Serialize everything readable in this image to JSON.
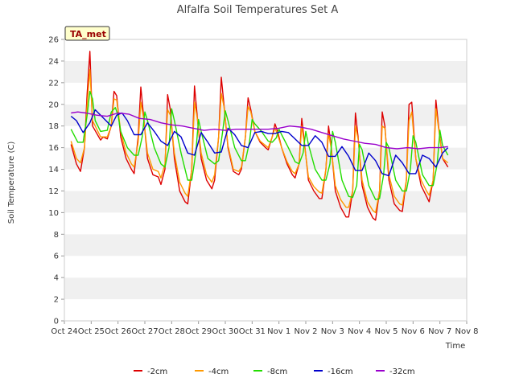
{
  "chart_data": {
    "type": "line",
    "title": "Alfalfa Soil Temperatures Set A",
    "xlabel": "Time",
    "ylabel": "Soil Temperature (C)",
    "badge": "TA_met",
    "ylim": [
      0,
      26
    ],
    "yticks": [
      0,
      2,
      4,
      6,
      8,
      10,
      12,
      14,
      16,
      18,
      20,
      22,
      24,
      26
    ],
    "xlim": [
      0,
      15
    ],
    "xticks": [
      {
        "pos": 0,
        "label": "Oct 24"
      },
      {
        "pos": 1,
        "label": "Oct 25"
      },
      {
        "pos": 2,
        "label": "Oct 26"
      },
      {
        "pos": 3,
        "label": "Oct 27"
      },
      {
        "pos": 4,
        "label": "Oct 28"
      },
      {
        "pos": 5,
        "label": "Oct 29"
      },
      {
        "pos": 6,
        "label": "Oct 30"
      },
      {
        "pos": 7,
        "label": "Oct 31"
      },
      {
        "pos": 8,
        "label": "Nov 1"
      },
      {
        "pos": 9,
        "label": "Nov 2"
      },
      {
        "pos": 10,
        "label": "Nov 3"
      },
      {
        "pos": 11,
        "label": "Nov 4"
      },
      {
        "pos": 12,
        "label": "Nov 5"
      },
      {
        "pos": 13,
        "label": "Nov 6"
      },
      {
        "pos": 14,
        "label": "Nov 7"
      },
      {
        "pos": 15,
        "label": "Nov 8"
      }
    ],
    "grid": "horizontal alternating bands",
    "legend_position": "bottom",
    "series": [
      {
        "name": "-2cm",
        "color": "#dd0000",
        "x": [
          0.25,
          0.45,
          0.6,
          0.75,
          0.85,
          0.95,
          1.05,
          1.35,
          1.45,
          1.6,
          1.75,
          1.85,
          1.95,
          2.1,
          2.3,
          2.5,
          2.6,
          2.75,
          2.85,
          2.95,
          3.1,
          3.3,
          3.5,
          3.6,
          3.75,
          3.85,
          3.95,
          4.1,
          4.3,
          4.5,
          4.6,
          4.75,
          4.85,
          4.95,
          5.1,
          5.3,
          5.5,
          5.6,
          5.75,
          5.85,
          5.95,
          6.1,
          6.3,
          6.5,
          6.6,
          6.75,
          6.85,
          6.95,
          7.1,
          7.3,
          7.5,
          7.6,
          7.75,
          7.85,
          7.95,
          8.1,
          8.3,
          8.5,
          8.6,
          8.75,
          8.85,
          8.95,
          9.1,
          9.3,
          9.5,
          9.6,
          9.75,
          9.85,
          9.95,
          10.1,
          10.3,
          10.5,
          10.6,
          10.75,
          10.85,
          10.95,
          11.1,
          11.3,
          11.5,
          11.6,
          11.75,
          11.85,
          11.95,
          12.1,
          12.3,
          12.5,
          12.6,
          12.75,
          12.85,
          12.95,
          13.1,
          13.3,
          13.5,
          13.6,
          13.75,
          13.85,
          13.95,
          14.1,
          14.3
        ],
        "values": [
          16.3,
          14.5,
          13.8,
          16,
          21,
          24.9,
          18,
          16.7,
          17,
          16.8,
          18,
          21.2,
          20.8,
          17,
          15,
          14,
          13.6,
          17,
          21.6,
          19,
          15,
          13.5,
          13.3,
          12.6,
          14,
          20.9,
          19.5,
          15,
          12,
          11,
          10.8,
          14,
          21.7,
          19,
          15,
          13,
          12.2,
          13,
          17,
          22.5,
          20,
          16,
          13.8,
          13.5,
          14,
          17,
          20.6,
          19.5,
          17.5,
          16.5,
          16,
          15.8,
          17,
          18.2,
          17.5,
          16,
          14.5,
          13.5,
          13.2,
          14.5,
          18.7,
          16.5,
          13,
          12,
          11.3,
          11.3,
          14,
          18,
          16,
          12,
          10.5,
          9.6,
          9.6,
          12,
          19.2,
          17,
          12.5,
          10.5,
          9.5,
          9.3,
          12,
          19.3,
          18,
          13,
          10.8,
          10.2,
          10.1,
          13,
          20,
          20.2,
          15,
          12.5,
          11.5,
          11,
          13,
          20.4,
          18,
          15,
          14.2
        ]
      },
      {
        "name": "-4cm",
        "color": "#ff9900",
        "x": [
          0.25,
          0.45,
          0.6,
          0.75,
          0.85,
          0.95,
          1.05,
          1.35,
          1.45,
          1.6,
          1.75,
          1.85,
          1.95,
          2.1,
          2.3,
          2.5,
          2.6,
          2.75,
          2.85,
          2.95,
          3.1,
          3.3,
          3.5,
          3.6,
          3.75,
          3.85,
          3.95,
          4.1,
          4.3,
          4.5,
          4.6,
          4.75,
          4.85,
          4.95,
          5.1,
          5.3,
          5.5,
          5.6,
          5.75,
          5.85,
          5.95,
          6.1,
          6.3,
          6.5,
          6.6,
          6.75,
          6.85,
          6.95,
          7.1,
          7.3,
          7.5,
          7.6,
          7.75,
          7.85,
          7.95,
          8.1,
          8.3,
          8.5,
          8.6,
          8.75,
          8.85,
          8.95,
          9.1,
          9.3,
          9.5,
          9.6,
          9.75,
          9.85,
          9.95,
          10.1,
          10.3,
          10.5,
          10.6,
          10.75,
          10.85,
          10.95,
          11.1,
          11.3,
          11.5,
          11.6,
          11.75,
          11.85,
          11.95,
          12.1,
          12.3,
          12.5,
          12.6,
          12.75,
          12.85,
          12.95,
          13.1,
          13.3,
          13.5,
          13.6,
          13.75,
          13.85,
          13.95,
          14.1,
          14.3
        ],
        "values": [
          16.6,
          15,
          14.6,
          16,
          20,
          23.2,
          18.5,
          17,
          17,
          17,
          18,
          20.5,
          20.4,
          17.5,
          15.5,
          14.5,
          14.2,
          16.5,
          20.2,
          18.8,
          15.5,
          14,
          13.8,
          13.2,
          14.5,
          19.5,
          19,
          15.5,
          12.8,
          11.8,
          11.5,
          14,
          20.2,
          18.8,
          15.5,
          13.5,
          12.8,
          13.5,
          17,
          21,
          19.8,
          16.2,
          14,
          13.8,
          14.2,
          17,
          19.8,
          19.3,
          17.5,
          16.6,
          16.2,
          16,
          17,
          17.8,
          17.2,
          16,
          14.7,
          13.8,
          13.6,
          14.5,
          18,
          16.3,
          13.3,
          12.4,
          11.9,
          11.8,
          14,
          17.3,
          15.9,
          12.5,
          11.2,
          10.5,
          10.5,
          12,
          18,
          16.8,
          13,
          11,
          10.2,
          10,
          12,
          18,
          17.8,
          13.5,
          11.5,
          10.8,
          10.7,
          13,
          18.5,
          19.3,
          15,
          13,
          12,
          11.6,
          13,
          19.6,
          17.8,
          15,
          14.6
        ]
      },
      {
        "name": "-8cm",
        "color": "#22dd00",
        "x": [
          0.25,
          0.5,
          0.7,
          0.85,
          0.95,
          1.05,
          1.15,
          1.35,
          1.6,
          1.75,
          1.9,
          2.0,
          2.1,
          2.35,
          2.6,
          2.75,
          2.9,
          3.0,
          3.1,
          3.35,
          3.6,
          3.75,
          3.9,
          4.0,
          4.1,
          4.35,
          4.6,
          4.75,
          4.9,
          5.0,
          5.1,
          5.35,
          5.6,
          5.75,
          5.9,
          6.0,
          6.1,
          6.35,
          6.6,
          6.75,
          6.9,
          7.0,
          7.1,
          7.35,
          7.6,
          7.75,
          7.9,
          8.0,
          8.1,
          8.35,
          8.6,
          8.75,
          8.9,
          9.0,
          9.1,
          9.35,
          9.6,
          9.75,
          9.9,
          10.0,
          10.1,
          10.35,
          10.6,
          10.75,
          10.9,
          11.0,
          11.1,
          11.35,
          11.6,
          11.75,
          11.9,
          12.0,
          12.1,
          12.35,
          12.6,
          12.75,
          12.9,
          13.0,
          13.1,
          13.35,
          13.6,
          13.75,
          13.9,
          14.0,
          14.1,
          14.3
        ],
        "values": [
          17.7,
          16.5,
          16.5,
          19,
          21.2,
          20.5,
          18.5,
          17.5,
          17.6,
          19.3,
          19.7,
          19,
          17.5,
          16,
          15.3,
          15.3,
          17,
          19.3,
          18.5,
          16,
          14.5,
          14.2,
          16,
          19.6,
          18.5,
          15.5,
          13,
          13,
          15.5,
          18.6,
          17.5,
          15,
          14.5,
          14.8,
          17.5,
          19.4,
          18.5,
          16,
          14.8,
          14.8,
          16.5,
          18.6,
          18.2,
          17.5,
          16.6,
          16.5,
          16.9,
          17.7,
          17.2,
          16,
          14.7,
          14.5,
          15.5,
          17.5,
          16.3,
          14,
          13,
          13,
          14.5,
          17.5,
          16.5,
          13,
          11.5,
          11.4,
          12.5,
          16.3,
          15.8,
          12.5,
          11.2,
          11.3,
          13.5,
          16.5,
          16,
          13,
          12,
          12,
          14,
          17.1,
          16.5,
          13.5,
          12.5,
          12.5,
          14.5,
          17.6,
          16.2,
          15.3
        ]
      },
      {
        "name": "-16cm",
        "color": "#0000cc",
        "x": [
          0.25,
          0.45,
          0.7,
          0.95,
          1.15,
          1.35,
          1.55,
          1.75,
          1.95,
          2.15,
          2.35,
          2.6,
          2.85,
          3.1,
          3.35,
          3.6,
          3.85,
          4.1,
          4.35,
          4.6,
          4.85,
          5.1,
          5.35,
          5.6,
          5.85,
          6.1,
          6.35,
          6.6,
          6.85,
          7.1,
          7.35,
          7.6,
          7.85,
          8.1,
          8.35,
          8.6,
          8.85,
          9.1,
          9.35,
          9.6,
          9.85,
          10.1,
          10.35,
          10.6,
          10.85,
          11.1,
          11.35,
          11.6,
          11.85,
          12.1,
          12.35,
          12.6,
          12.85,
          13.1,
          13.35,
          13.6,
          13.85,
          14.1,
          14.3
        ],
        "values": [
          18.9,
          18.5,
          17.4,
          18.3,
          19.5,
          19,
          18.5,
          18,
          19,
          19.2,
          18.5,
          17.2,
          17.2,
          18.3,
          17.5,
          16.6,
          16.2,
          17.5,
          17,
          15.5,
          15.3,
          17.4,
          16.5,
          15.5,
          15.6,
          17.8,
          17.2,
          16.2,
          16,
          17.4,
          17.5,
          17.3,
          17.3,
          17.5,
          17.4,
          16.8,
          16.2,
          16.2,
          17.1,
          16.5,
          15.2,
          15.2,
          16.1,
          15.2,
          13.9,
          13.9,
          15.5,
          14.8,
          13.6,
          13.4,
          15.3,
          14.6,
          13.6,
          13.6,
          15.3,
          15,
          14.2,
          15.5,
          16
        ]
      },
      {
        "name": "-32cm",
        "color": "#9900cc",
        "x": [
          0.25,
          0.5,
          0.8,
          1.2,
          1.6,
          2.0,
          2.4,
          2.8,
          3.2,
          3.6,
          4.0,
          4.4,
          4.8,
          5.2,
          5.6,
          6.0,
          6.4,
          6.8,
          7.2,
          7.6,
          8.0,
          8.4,
          8.8,
          9.2,
          9.6,
          10.0,
          10.4,
          10.8,
          11.2,
          11.6,
          12.0,
          12.4,
          12.8,
          13.2,
          13.6,
          14.0,
          14.3
        ],
        "values": [
          19.2,
          19.3,
          19.2,
          19,
          18.9,
          19.2,
          19.1,
          18.7,
          18.6,
          18.3,
          18.1,
          18,
          17.8,
          17.6,
          17.7,
          17.6,
          17.7,
          17.7,
          17.7,
          17.7,
          17.8,
          18,
          17.9,
          17.7,
          17.4,
          17.1,
          16.8,
          16.6,
          16.4,
          16.3,
          16,
          15.9,
          16,
          15.9,
          16,
          16,
          16.1
        ]
      }
    ]
  }
}
